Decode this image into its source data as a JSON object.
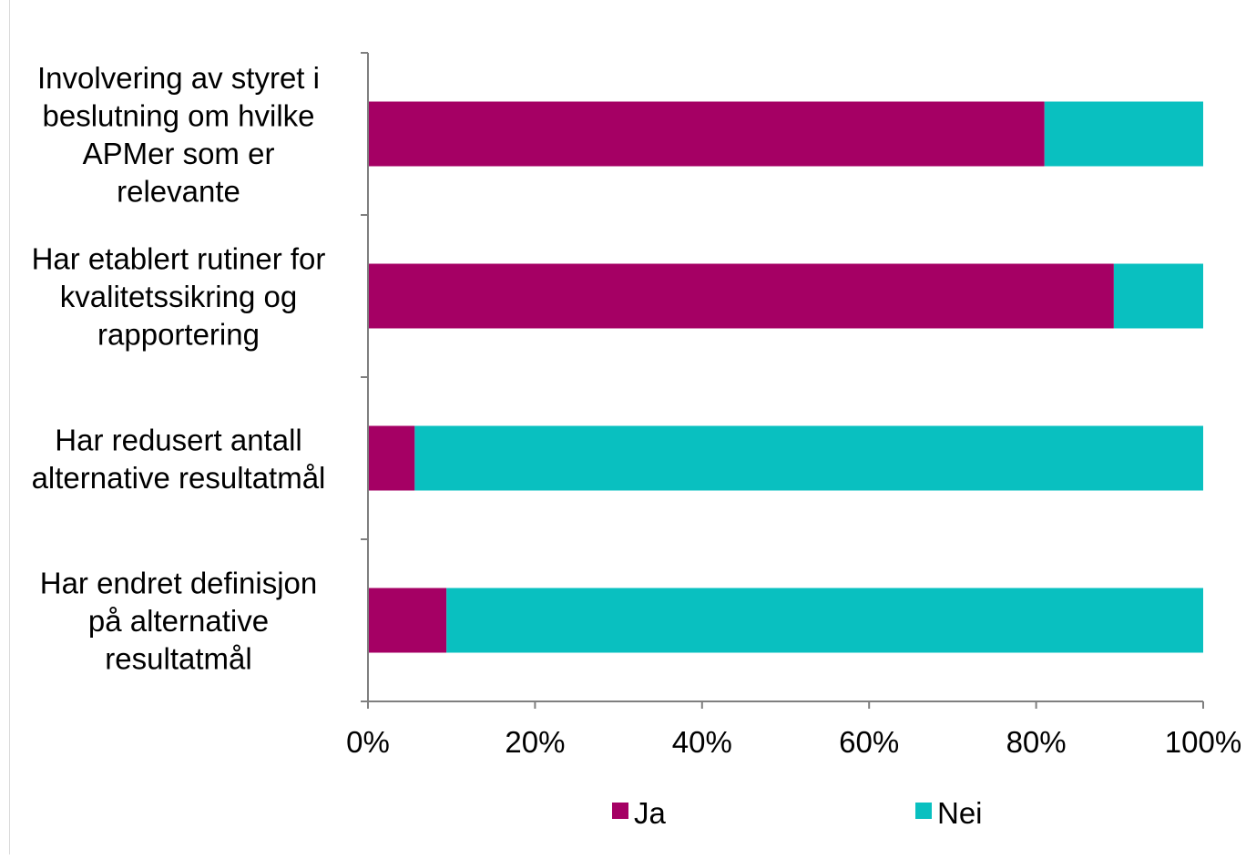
{
  "chart_data": {
    "type": "bar",
    "orientation": "horizontal",
    "stacked": "percent",
    "categories": [
      [
        "Involvering av styret i",
        "beslutning om hvilke",
        "APMer som er",
        "relevante"
      ],
      [
        "Har etablert rutiner for",
        "kvalitetssikring og",
        "rapportering"
      ],
      [
        "Har redusert antall",
        "alternative resultatmål"
      ],
      [
        "Har endret definisjon",
        "på alternative",
        "resultatmål"
      ]
    ],
    "series": [
      {
        "name": "Ja",
        "color": "#a50064",
        "values": [
          81,
          89.3,
          5.6,
          9.4
        ]
      },
      {
        "name": "Nei",
        "color": "#09c0c0",
        "values": [
          19,
          10.7,
          94.4,
          90.6
        ]
      }
    ],
    "xlim": [
      0,
      100
    ],
    "x_ticks": [
      "0%",
      "20%",
      "40%",
      "60%",
      "80%",
      "100%"
    ],
    "xlabel": "",
    "ylabel": "",
    "grid": false,
    "legend": "bottom",
    "axis_color": "#7f7f7f"
  }
}
